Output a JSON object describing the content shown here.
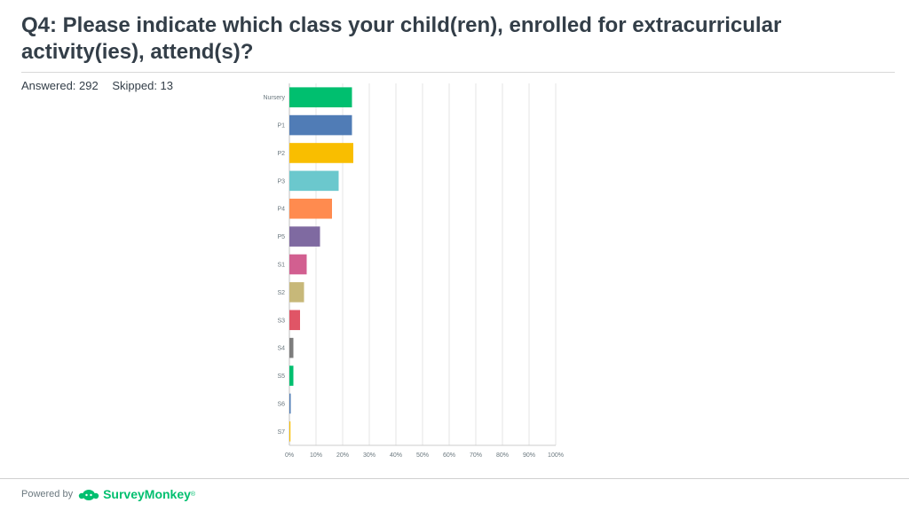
{
  "header": {
    "title": "Q4: Please indicate which class your child(ren), enrolled for extracurricular activity(ies), attend(s)?",
    "answered": "Answered: 292",
    "skipped": "Skipped: 13"
  },
  "footer": {
    "powered_by": "Powered by",
    "brand": "SurveyMonkey",
    "brand_mark": "®",
    "brand_color": "#00bf6f"
  },
  "chart_data": {
    "type": "bar",
    "orientation": "horizontal",
    "categories": [
      "Nursery",
      "P1",
      "P2",
      "P3",
      "P4",
      "P5",
      "S1",
      "S2",
      "S3",
      "S4",
      "S5",
      "S6",
      "S7"
    ],
    "values": [
      23.5,
      23.5,
      24,
      18.5,
      16,
      11.5,
      6.5,
      5.5,
      4,
      1.5,
      1.5,
      0.5,
      0.3
    ],
    "colors": [
      "#00bf6f",
      "#507cb6",
      "#f9be00",
      "#6bc8cd",
      "#ff8b4f",
      "#7f6aa1",
      "#d25f90",
      "#c7b879",
      "#e05566",
      "#7d7d7d",
      "#00bf6f",
      "#507cb6",
      "#f9be00"
    ],
    "xticks": [
      "0%",
      "10%",
      "20%",
      "30%",
      "40%",
      "50%",
      "60%",
      "70%",
      "80%",
      "90%",
      "100%"
    ],
    "xlim": [
      0,
      100
    ],
    "grid": true,
    "title": "",
    "xlabel": "",
    "ylabel": ""
  }
}
